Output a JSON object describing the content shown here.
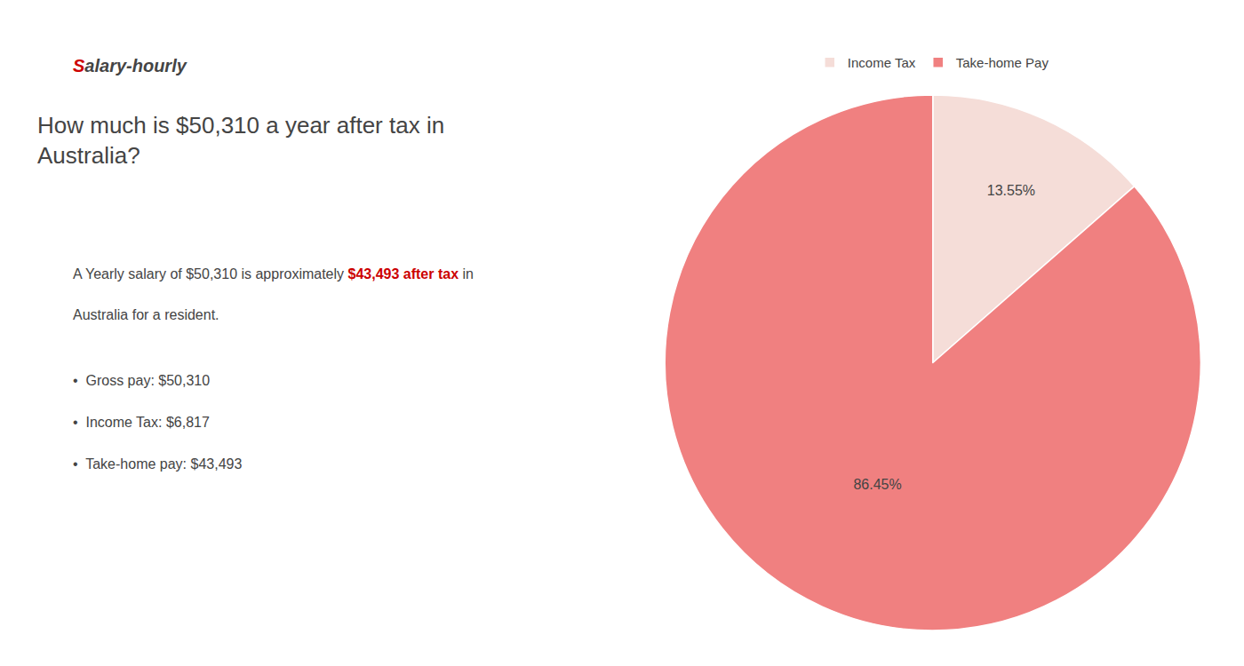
{
  "chart_data": {
    "type": "pie",
    "title": [
      "How much is $50,310 a year after tax in",
      "Australia?"
    ],
    "annotations": [
      [
        {
          "text": "S",
          "color": "#cc0000"
        },
        {
          "text": "alary-hourly"
        }
      ],
      [
        {
          "text": "A Yearly salary of $50,310 is approximately "
        },
        {
          "text": "$43,493 after tax",
          "color": "#cc0000"
        },
        {
          "text": " in"
        }
      ],
      [
        {
          "text": "Australia for a resident."
        }
      ],
      [
        {
          "text": "•  Gross pay: $50,310"
        }
      ],
      [
        {
          "text": "•  Income Tax: $6,817"
        }
      ],
      [
        {
          "text": "•  Take-home pay: $43,493"
        }
      ]
    ],
    "categories": [
      "Income Tax",
      "Take-home Pay"
    ],
    "values": [
      13.55,
      86.45
    ],
    "value_labels": [
      "13.55%",
      "86.45%"
    ],
    "colors": [
      "#f5ddd8",
      "#f08080"
    ],
    "data_labels": true,
    "legend": "top"
  }
}
